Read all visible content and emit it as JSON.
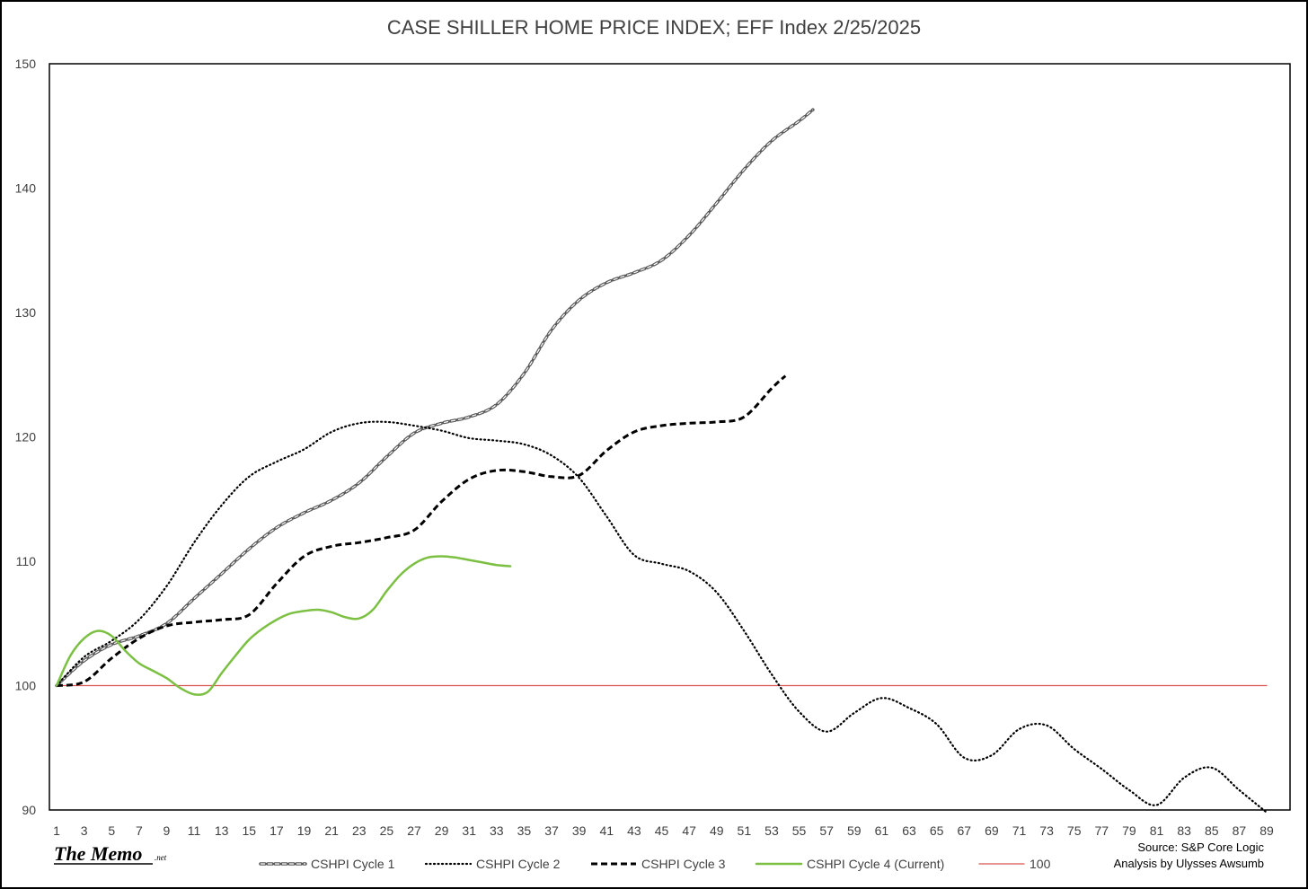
{
  "chart_data": {
    "type": "line",
    "title": "CASE SHILLER HOME PRICE INDEX; EFF Index 2/25/2025",
    "xlabel": "",
    "ylabel": "",
    "xlim": [
      1,
      89
    ],
    "ylim": [
      90,
      150
    ],
    "yticks": [
      90,
      100,
      110,
      120,
      130,
      140,
      150
    ],
    "xticks": [
      1,
      3,
      5,
      7,
      9,
      11,
      13,
      15,
      17,
      19,
      21,
      23,
      25,
      27,
      29,
      31,
      33,
      35,
      37,
      39,
      41,
      43,
      45,
      47,
      49,
      51,
      53,
      55,
      57,
      59,
      61,
      63,
      65,
      67,
      69,
      71,
      73,
      75,
      77,
      79,
      81,
      83,
      85,
      87,
      89
    ],
    "legend_position": "bottom",
    "series": [
      {
        "name": "CSHPI Cycle 1",
        "color": "#595959",
        "style": "dashed-double",
        "x": [
          1,
          3,
          5,
          7,
          9,
          11,
          13,
          15,
          17,
          19,
          21,
          23,
          25,
          27,
          29,
          31,
          33,
          35,
          37,
          39,
          41,
          43,
          45,
          47,
          49,
          51,
          53,
          55,
          56
        ],
        "values": [
          100,
          102,
          103.3,
          104,
          105,
          107,
          109,
          111,
          112.7,
          113.9,
          114.9,
          116.3,
          118.4,
          120.3,
          121.1,
          121.6,
          122.6,
          125.1,
          128.6,
          131,
          132.4,
          133.2,
          134.2,
          136.2,
          138.8,
          141.5,
          143.8,
          145.4,
          146.3
        ]
      },
      {
        "name": "CSHPI Cycle 2",
        "color": "#000000",
        "style": "dotted",
        "x": [
          1,
          3,
          5,
          7,
          9,
          11,
          13,
          15,
          17,
          19,
          21,
          23,
          25,
          27,
          29,
          31,
          33,
          35,
          37,
          39,
          41,
          43,
          45,
          47,
          49,
          51,
          53,
          55,
          57,
          59,
          61,
          63,
          65,
          67,
          69,
          71,
          73,
          75,
          77,
          79,
          81,
          83,
          85,
          87,
          89
        ],
        "values": [
          100,
          102.3,
          103.6,
          105.3,
          108,
          111.5,
          114.5,
          116.8,
          118,
          119,
          120.4,
          121.1,
          121.2,
          120.9,
          120.5,
          119.9,
          119.7,
          119.4,
          118.5,
          116.7,
          113.6,
          110.5,
          109.8,
          109.2,
          107.5,
          104.4,
          100.9,
          97.9,
          96.3,
          97.8,
          99,
          98.2,
          96.9,
          94.2,
          94.4,
          96.5,
          96.8,
          94.9,
          93.3,
          91.6,
          90.4,
          92.6,
          93.4,
          91.6,
          89.8
        ]
      },
      {
        "name": "CSHPI Cycle 3",
        "color": "#000000",
        "style": "dashed",
        "x": [
          1,
          3,
          5,
          7,
          9,
          11,
          13,
          15,
          17,
          19,
          21,
          23,
          25,
          27,
          29,
          31,
          33,
          35,
          37,
          39,
          41,
          43,
          45,
          47,
          49,
          51,
          53,
          54
        ],
        "values": [
          100,
          100.3,
          102.2,
          103.8,
          104.8,
          105.1,
          105.3,
          105.7,
          108.2,
          110.4,
          111.2,
          111.5,
          111.9,
          112.5,
          114.8,
          116.6,
          117.3,
          117.2,
          116.8,
          116.9,
          118.9,
          120.4,
          120.9,
          121.1,
          121.2,
          121.6,
          123.9,
          124.9
        ]
      },
      {
        "name": "CSHPI Cycle 4 (Current)",
        "color": "#7cc043",
        "style": "solid",
        "x": [
          1,
          2,
          3,
          4,
          5,
          6,
          7,
          8,
          9,
          10,
          11,
          12,
          13,
          14,
          15,
          16,
          17,
          18,
          19,
          20,
          21,
          22,
          23,
          24,
          25,
          26,
          27,
          28,
          29,
          30,
          31,
          32,
          33,
          34
        ],
        "values": [
          100,
          102.4,
          103.8,
          104.4,
          104,
          102.8,
          101.8,
          101.2,
          100.6,
          99.8,
          99.3,
          99.5,
          101,
          102.4,
          103.7,
          104.6,
          105.3,
          105.8,
          106,
          106.1,
          105.9,
          105.5,
          105.4,
          106.1,
          107.6,
          108.9,
          109.8,
          110.3,
          110.4,
          110.3,
          110.1,
          109.9,
          109.7,
          109.6
        ]
      },
      {
        "name": "100",
        "color": "#d9534f",
        "style": "solid-thin",
        "x": [
          1,
          89
        ],
        "values": [
          100,
          100
        ]
      }
    ]
  },
  "branding": {
    "logo_main": "The Memo",
    "logo_suffix": ".net"
  },
  "notes": {
    "source": "Source: S&P Core Logic",
    "analysis": "Analysis by Ulysses Awsumb"
  }
}
